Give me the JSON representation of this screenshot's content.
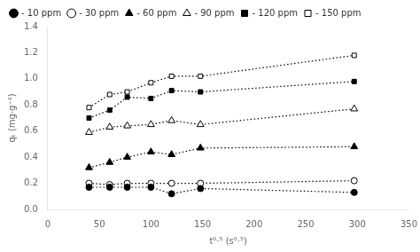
{
  "chart_data": {
    "type": "line",
    "x_label": "t⁰·⁵ (s⁰·⁵)",
    "y_label": "qₜ (mg·g⁻¹)",
    "xlim": [
      0,
      350
    ],
    "ylim": [
      0,
      1.4
    ],
    "xticks": [
      0,
      50,
      100,
      150,
      200,
      250,
      300,
      350
    ],
    "yticks": [
      {
        "value": 0,
        "label": "0.0"
      },
      0.2,
      0.4,
      0.6,
      0.8,
      {
        "value": 1.0,
        "label": "1.0"
      },
      1.2,
      1.4
    ],
    "grid": false,
    "legend": "top",
    "series": [
      {
        "name": "- 10 ppm",
        "marker": "circle",
        "line_style": "dotted",
        "color": "black",
        "x": [
          40,
          60,
          77,
          100,
          120,
          148,
          297
        ],
        "values": [
          0.17,
          0.17,
          0.17,
          0.17,
          0.12,
          0.16,
          0.13
        ]
      },
      {
        "name": "- 30 ppm",
        "marker": "circle-open",
        "line_style": "dotted",
        "color": "black",
        "x": [
          40,
          60,
          77,
          100,
          120,
          148,
          297
        ],
        "values": [
          0.2,
          0.19,
          0.2,
          0.2,
          0.2,
          0.2,
          0.22
        ]
      },
      {
        "name": "- 60 ppm",
        "marker": "triangle",
        "line_style": "dotted",
        "color": "black",
        "x": [
          40,
          60,
          77,
          100,
          120,
          148,
          297
        ],
        "values": [
          0.32,
          0.36,
          0.4,
          0.44,
          0.42,
          0.47,
          0.48
        ]
      },
      {
        "name": "- 90 ppm",
        "marker": "triangle-open",
        "line_style": "dotted",
        "color": "black",
        "x": [
          40,
          60,
          77,
          100,
          120,
          148,
          297
        ],
        "values": [
          0.59,
          0.63,
          0.64,
          0.65,
          0.68,
          0.65,
          0.77
        ]
      },
      {
        "name": "- 120 ppm",
        "marker": "square",
        "line_style": "dotted",
        "color": "black",
        "x": [
          40,
          60,
          77,
          100,
          120,
          148,
          297
        ],
        "values": [
          0.7,
          0.76,
          0.86,
          0.85,
          0.91,
          0.9,
          0.98
        ]
      },
      {
        "name": "- 150 ppm",
        "marker": "square-open",
        "line_style": "dotted",
        "color": "black",
        "x": [
          40,
          60,
          77,
          100,
          120,
          148,
          297
        ],
        "values": [
          0.78,
          0.88,
          0.9,
          0.97,
          1.02,
          1.02,
          1.18
        ]
      }
    ]
  }
}
